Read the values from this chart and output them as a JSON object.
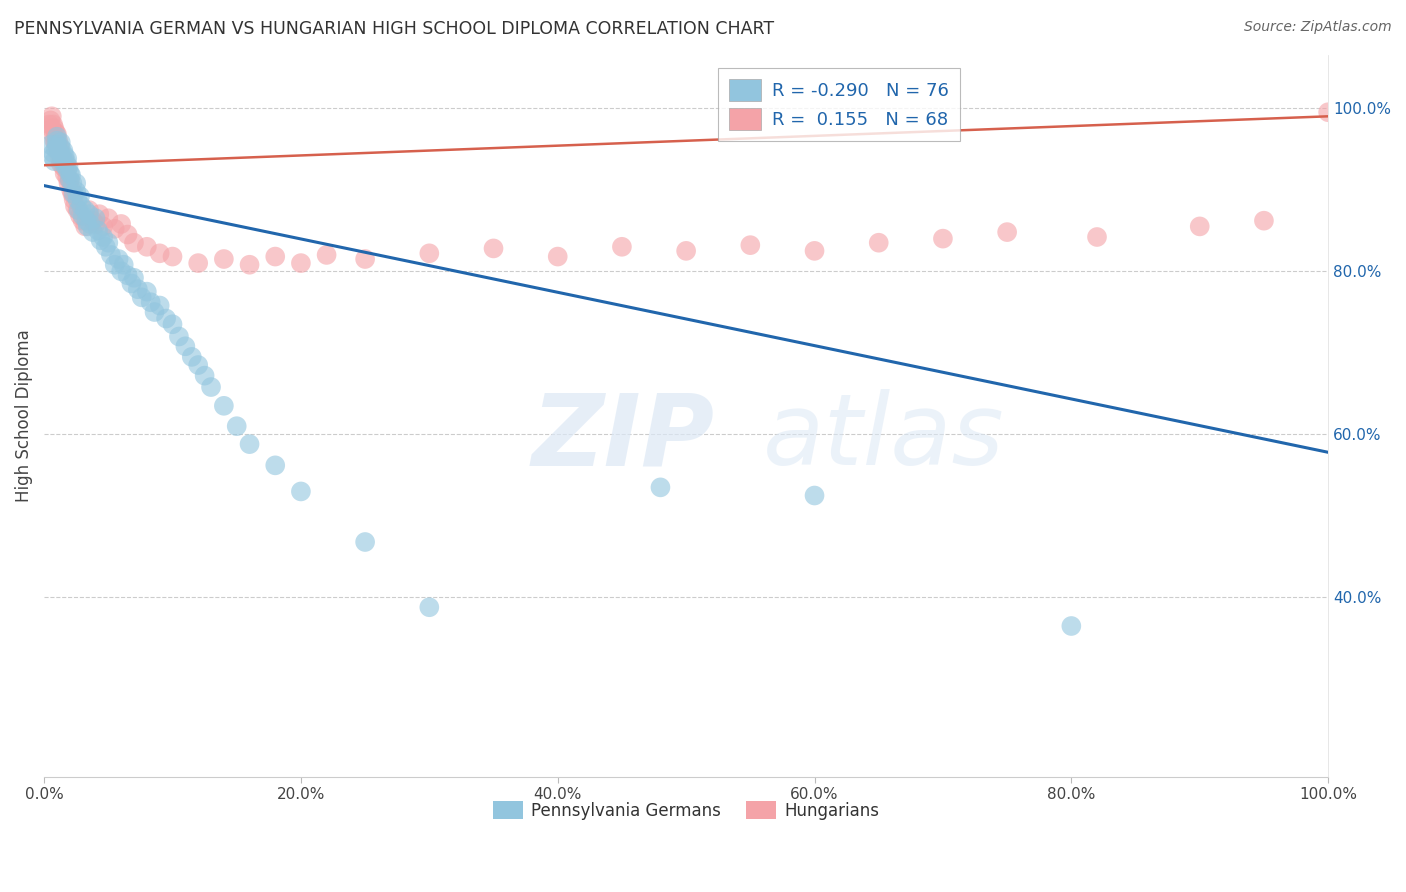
{
  "title": "PENNSYLVANIA GERMAN VS HUNGARIAN HIGH SCHOOL DIPLOMA CORRELATION CHART",
  "source": "Source: ZipAtlas.com",
  "ylabel": "High School Diploma",
  "blue_color": "#92c5de",
  "pink_color": "#f4a3a8",
  "blue_line_color": "#2166ac",
  "pink_line_color": "#d6604d",
  "watermark_zip": "ZIP",
  "watermark_atlas": "atlas",
  "xlim": [
    0.0,
    1.0
  ],
  "ylim": [
    0.18,
    1.065
  ],
  "blue_trend_x0": 0.0,
  "blue_trend_y0": 0.905,
  "blue_trend_x1": 1.0,
  "blue_trend_y1": 0.578,
  "pink_trend_x0": 0.0,
  "pink_trend_y0": 0.93,
  "pink_trend_x1": 1.0,
  "pink_trend_y1": 0.99,
  "legend_r_blue": "R = -0.290",
  "legend_n_blue": "N = 76",
  "legend_r_pink": "R =  0.155",
  "legend_n_pink": "N = 68",
  "xtick_vals": [
    0.0,
    0.2,
    0.4,
    0.6,
    0.8,
    1.0
  ],
  "xtick_labels": [
    "0.0%",
    "20.0%",
    "40.0%",
    "60.0%",
    "80.0%",
    "100.0%"
  ],
  "ytick_vals": [
    0.4,
    0.6,
    0.8,
    1.0
  ],
  "ytick_labels": [
    "40.0%",
    "60.0%",
    "80.0%",
    "100.0%"
  ],
  "blue_x": [
    0.005,
    0.007,
    0.007,
    0.008,
    0.009,
    0.01,
    0.01,
    0.01,
    0.012,
    0.013,
    0.013,
    0.014,
    0.015,
    0.015,
    0.016,
    0.016,
    0.017,
    0.018,
    0.018,
    0.019,
    0.02,
    0.02,
    0.021,
    0.022,
    0.023,
    0.025,
    0.025,
    0.026,
    0.027,
    0.028,
    0.029,
    0.03,
    0.032,
    0.033,
    0.034,
    0.035,
    0.036,
    0.038,
    0.04,
    0.042,
    0.044,
    0.046,
    0.048,
    0.05,
    0.052,
    0.055,
    0.058,
    0.06,
    0.062,
    0.065,
    0.068,
    0.07,
    0.073,
    0.076,
    0.08,
    0.083,
    0.086,
    0.09,
    0.095,
    0.1,
    0.105,
    0.11,
    0.115,
    0.12,
    0.125,
    0.13,
    0.14,
    0.15,
    0.16,
    0.18,
    0.2,
    0.25,
    0.3,
    0.48,
    0.6,
    0.8
  ],
  "blue_y": [
    0.955,
    0.945,
    0.94,
    0.935,
    0.95,
    0.96,
    0.965,
    0.955,
    0.945,
    0.958,
    0.952,
    0.94,
    0.948,
    0.935,
    0.93,
    0.942,
    0.935,
    0.925,
    0.938,
    0.928,
    0.92,
    0.912,
    0.918,
    0.908,
    0.895,
    0.908,
    0.898,
    0.888,
    0.875,
    0.892,
    0.88,
    0.868,
    0.875,
    0.862,
    0.855,
    0.87,
    0.858,
    0.848,
    0.865,
    0.85,
    0.838,
    0.842,
    0.83,
    0.835,
    0.82,
    0.808,
    0.815,
    0.8,
    0.808,
    0.795,
    0.785,
    0.792,
    0.778,
    0.768,
    0.775,
    0.762,
    0.75,
    0.758,
    0.742,
    0.735,
    0.72,
    0.708,
    0.695,
    0.685,
    0.672,
    0.658,
    0.635,
    0.61,
    0.588,
    0.562,
    0.53,
    0.468,
    0.388,
    0.535,
    0.525,
    0.365
  ],
  "pink_x": [
    0.004,
    0.005,
    0.006,
    0.006,
    0.007,
    0.007,
    0.008,
    0.008,
    0.009,
    0.009,
    0.01,
    0.01,
    0.011,
    0.011,
    0.012,
    0.012,
    0.013,
    0.013,
    0.014,
    0.015,
    0.016,
    0.016,
    0.017,
    0.018,
    0.019,
    0.02,
    0.021,
    0.022,
    0.023,
    0.024,
    0.026,
    0.028,
    0.03,
    0.032,
    0.035,
    0.038,
    0.04,
    0.043,
    0.046,
    0.05,
    0.055,
    0.06,
    0.065,
    0.07,
    0.08,
    0.09,
    0.1,
    0.12,
    0.14,
    0.16,
    0.18,
    0.2,
    0.22,
    0.25,
    0.3,
    0.35,
    0.4,
    0.45,
    0.5,
    0.55,
    0.6,
    0.65,
    0.7,
    0.75,
    0.82,
    0.9,
    0.95,
    1.0
  ],
  "pink_y": [
    0.98,
    0.985,
    0.975,
    0.99,
    0.98,
    0.968,
    0.975,
    0.96,
    0.97,
    0.958,
    0.968,
    0.955,
    0.96,
    0.948,
    0.952,
    0.94,
    0.945,
    0.932,
    0.938,
    0.928,
    0.935,
    0.92,
    0.925,
    0.915,
    0.908,
    0.912,
    0.9,
    0.895,
    0.888,
    0.88,
    0.875,
    0.868,
    0.862,
    0.855,
    0.875,
    0.862,
    0.858,
    0.87,
    0.855,
    0.865,
    0.852,
    0.858,
    0.845,
    0.835,
    0.83,
    0.822,
    0.818,
    0.81,
    0.815,
    0.808,
    0.818,
    0.81,
    0.82,
    0.815,
    0.822,
    0.828,
    0.818,
    0.83,
    0.825,
    0.832,
    0.825,
    0.835,
    0.84,
    0.848,
    0.842,
    0.855,
    0.862,
    0.995
  ]
}
